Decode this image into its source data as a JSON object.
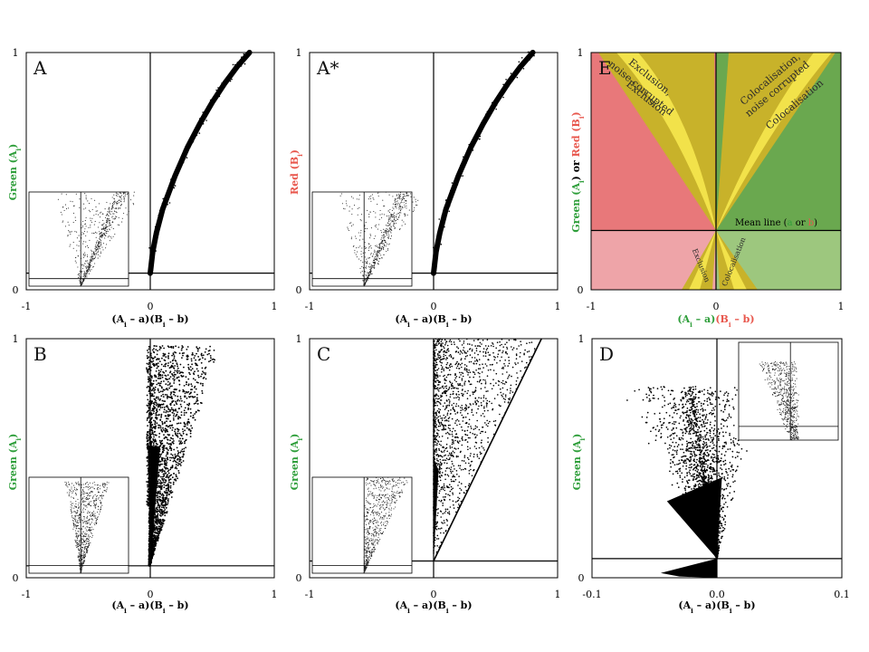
{
  "chart_data": [
    {
      "type": "scatter",
      "panel_label": "A",
      "xlabel_parts": [
        [
          "(A",
          "#000"
        ],
        [
          "i",
          "#000",
          "sub"
        ],
        [
          " – a)(B",
          "#000"
        ],
        [
          "i",
          "#000",
          "sub"
        ],
        [
          " – b)",
          "#000"
        ]
      ],
      "ylabel_parts": [
        [
          "Green (A",
          "#2e9e3a"
        ],
        [
          "i",
          "#2e9e3a",
          "sub"
        ],
        [
          ")",
          "#2e9e3a"
        ]
      ],
      "xlim": [
        -1,
        1
      ],
      "ylim": [
        0,
        1
      ],
      "x_ticks": [
        "-1",
        "0",
        "1"
      ],
      "y_ticks": [
        "0",
        "1"
      ],
      "mean_line_y": 0.07,
      "description": "Points fall on a single upward curve starting at the origin",
      "curve": {
        "x": [
          0,
          0.02,
          0.05,
          0.1,
          0.2,
          0.3,
          0.4,
          0.5,
          0.6,
          0.7,
          0.8
        ],
        "y": [
          0.07,
          0.16,
          0.24,
          0.34,
          0.48,
          0.6,
          0.7,
          0.79,
          0.87,
          0.94,
          1.0
        ]
      },
      "inset": "wedge"
    },
    {
      "type": "scatter",
      "panel_label": "A*",
      "xlabel_parts": [
        [
          "(A",
          "#000"
        ],
        [
          "i",
          "#000",
          "sub"
        ],
        [
          " – a)(B",
          "#000"
        ],
        [
          "i",
          "#000",
          "sub"
        ],
        [
          " – b)",
          "#000"
        ]
      ],
      "ylabel_parts": [
        [
          "Red (B",
          "#e8574d"
        ],
        [
          "i",
          "#e8574d",
          "sub"
        ],
        [
          ")",
          "#e8574d"
        ]
      ],
      "xlim": [
        -1,
        1
      ],
      "ylim": [
        0,
        1
      ],
      "x_ticks": [
        "-1",
        "0",
        "1"
      ],
      "y_ticks": [
        "0",
        "1"
      ],
      "mean_line_y": 0.07,
      "curve": {
        "x": [
          0,
          0.02,
          0.05,
          0.1,
          0.2,
          0.3,
          0.4,
          0.5,
          0.6,
          0.7,
          0.8
        ],
        "y": [
          0.07,
          0.16,
          0.24,
          0.34,
          0.48,
          0.6,
          0.7,
          0.79,
          0.87,
          0.94,
          1.0
        ]
      },
      "inset": "wedge"
    },
    {
      "type": "heatmap",
      "panel_label": "E",
      "xlabel_parts": [
        [
          "(A",
          "#2e9e3a"
        ],
        [
          "i",
          "#2e9e3a",
          "sub"
        ],
        [
          " – a)",
          "#2e9e3a"
        ],
        [
          "(B",
          "#e8574d"
        ],
        [
          "i",
          "#e8574d",
          "sub"
        ],
        [
          " – b)",
          "#e8574d"
        ]
      ],
      "ylabel_parts": [
        [
          "Green (A",
          "#2e9e3a"
        ],
        [
          "i",
          "#2e9e3a",
          "sub"
        ],
        [
          ") or ",
          "#000"
        ],
        [
          "Red (B",
          "#e8574d"
        ],
        [
          "i",
          "#e8574d",
          "sub"
        ],
        [
          ")",
          "#e8574d"
        ]
      ],
      "xlim": [
        -1,
        1
      ],
      "ylim": [
        0,
        1
      ],
      "x_ticks": [
        "-1",
        "0",
        "1"
      ],
      "y_ticks": [
        "0",
        "1"
      ],
      "mean_line_y": 0.25,
      "mean_line_label_parts": [
        [
          "Mean line (",
          "#000"
        ],
        [
          "a",
          "#2e9e3a"
        ],
        [
          " or ",
          "#000"
        ],
        [
          "b",
          "#e8574d"
        ],
        [
          ")",
          "#000"
        ]
      ],
      "region_labels": [
        "Exclusion, noise corrupted",
        "Exclusion",
        "Colocalisation, noise corrupted",
        "Colocalisation",
        "Exclusion",
        "Colocalisation"
      ],
      "region_colors": {
        "exclusion": "#e8787a",
        "exclusion_low": "#eea4a8",
        "colocalisation": "#6aa84f",
        "colocalisation_low": "#9dc77e",
        "noise": "#c8b22a",
        "band": "#f2e24a"
      }
    },
    {
      "type": "scatter",
      "panel_label": "B",
      "xlabel_parts": [
        [
          "(A",
          "#000"
        ],
        [
          "i",
          "#000",
          "sub"
        ],
        [
          " – a)(B",
          "#000"
        ],
        [
          "i",
          "#000",
          "sub"
        ],
        [
          " – b)",
          "#000"
        ]
      ],
      "ylabel_parts": [
        [
          "Green (A",
          "#2e9e3a"
        ],
        [
          "i",
          "#2e9e3a",
          "sub"
        ],
        [
          ")",
          "#2e9e3a"
        ]
      ],
      "xlim": [
        -1,
        1
      ],
      "ylim": [
        0,
        1
      ],
      "x_ticks": [
        "-1",
        "0",
        "1"
      ],
      "y_ticks": [
        "0",
        "1"
      ],
      "mean_line_y": 0.05,
      "cloud": {
        "x_min": -0.03,
        "slope_max": 1.2,
        "y_min": 0.05,
        "y_max": 0.97,
        "density": "high"
      },
      "inset": "dense"
    },
    {
      "type": "scatter",
      "panel_label": "C",
      "xlabel_parts": [
        [
          "(A",
          "#000"
        ],
        [
          "i",
          "#000",
          "sub"
        ],
        [
          " – a)(B",
          "#000"
        ],
        [
          "i",
          "#000",
          "sub"
        ],
        [
          " – b)",
          "#000"
        ]
      ],
      "ylabel_parts": [
        [
          "Green (A",
          "#2e9e3a"
        ],
        [
          "i",
          "#2e9e3a",
          "sub"
        ],
        [
          ")",
          "#2e9e3a"
        ]
      ],
      "xlim": [
        -1,
        1
      ],
      "ylim": [
        0,
        1
      ],
      "x_ticks": [
        "-1",
        "0",
        "1"
      ],
      "y_ticks": [
        "0",
        "1"
      ],
      "mean_line_y": 0.07,
      "triangle": {
        "x_max_at_top": 0.87,
        "y_min": 0.07,
        "y_max": 1.0
      },
      "inset": "triangle"
    },
    {
      "type": "scatter",
      "panel_label": "D",
      "xlabel_parts": [
        [
          "(A",
          "#000"
        ],
        [
          "i",
          "#000",
          "sub"
        ],
        [
          " – a)(B",
          "#000"
        ],
        [
          "i",
          "#000",
          "sub"
        ],
        [
          " – b)",
          "#000"
        ]
      ],
      "ylabel_parts": [
        [
          "Green (A",
          "#2e9e3a"
        ],
        [
          "i",
          "#2e9e3a",
          "sub"
        ],
        [
          ")",
          "#2e9e3a"
        ]
      ],
      "xlim": [
        -0.1,
        0.1
      ],
      "ylim": [
        0,
        1
      ],
      "x_ticks": [
        "-0.1",
        "0.0",
        "0.1"
      ],
      "y_ticks": [
        "0",
        "1"
      ],
      "mean_line_y": 0.08,
      "fan": {
        "x_left_at_top": -0.085,
        "x_right_at_top": 0.03,
        "y_min": 0.08,
        "y_max": 0.8
      },
      "inset": "fan"
    }
  ]
}
